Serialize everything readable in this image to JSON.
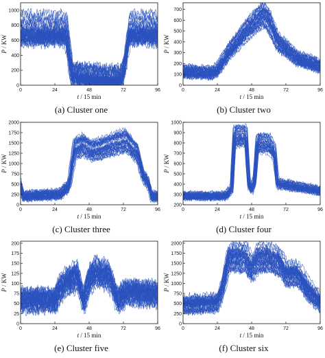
{
  "chart_data": [
    {
      "type": "line",
      "caption": "(a) Cluster one",
      "xlabel_var": "t",
      "xlabel_unit": " / 15 min",
      "ylabel_var": "P",
      "ylabel_unit": " / KW",
      "xlim": [
        0,
        96
      ],
      "ylim": [
        0,
        1100
      ],
      "xticks": [
        0,
        24,
        48,
        72,
        96
      ],
      "yticks": [
        0,
        200,
        400,
        600,
        800,
        1000
      ],
      "series_color": "#2a52be",
      "profile": {
        "x": [
          0,
          32,
          36,
          48,
          60,
          70,
          72,
          76,
          96
        ],
        "y": [
          720,
          720,
          150,
          110,
          90,
          100,
          200,
          720,
          720
        ]
      },
      "band": 330,
      "n_lines": 40
    },
    {
      "type": "line",
      "caption": "(b) Cluster two",
      "xlabel_var": "t",
      "xlabel_unit": " / 15 min",
      "ylabel_var": "P",
      "ylabel_unit": " / KW",
      "xlim": [
        0,
        96
      ],
      "ylim": [
        0,
        760
      ],
      "xticks": [
        0,
        24,
        48,
        72,
        96
      ],
      "yticks": [
        0,
        100,
        200,
        300,
        400,
        500,
        600,
        700
      ],
      "series_color": "#2a52be",
      "profile": {
        "x": [
          0,
          20,
          24,
          32,
          44,
          56,
          60,
          66,
          80,
          96
        ],
        "y": [
          120,
          110,
          140,
          300,
          500,
          650,
          590,
          400,
          240,
          170
        ]
      },
      "band": 120,
      "n_lines": 40
    },
    {
      "type": "line",
      "caption": "(c) Cluster three",
      "xlabel_var": "t",
      "xlabel_unit": " / 15 min",
      "ylabel_var": "P",
      "ylabel_unit": " / KW",
      "xlim": [
        0,
        96
      ],
      "ylim": [
        0,
        2000
      ],
      "xticks": [
        0,
        24,
        48,
        72,
        96
      ],
      "yticks": [
        0,
        250,
        500,
        750,
        1000,
        1250,
        1500,
        1750,
        2000
      ],
      "series_color": "#2a52be",
      "profile": {
        "x": [
          0,
          2,
          28,
          34,
          38,
          44,
          50,
          56,
          64,
          74,
          82,
          86,
          90,
          92
        ],
        "y": [
          500,
          200,
          250,
          450,
          1350,
          1450,
          1300,
          1350,
          1450,
          1550,
          1250,
          700,
          500,
          200
        ]
      },
      "band": 260,
      "n_lines": 40
    },
    {
      "type": "line",
      "caption": "(d) Cluster four",
      "xlabel_var": "t",
      "xlabel_unit": " / 15 min",
      "ylabel_var": "P",
      "ylabel_unit": " / KW",
      "xlim": [
        0,
        96
      ],
      "ylim": [
        200,
        1000
      ],
      "xticks": [
        0,
        24,
        48,
        72,
        96
      ],
      "yticks": [
        200,
        300,
        400,
        500,
        600,
        700,
        800,
        900,
        1000
      ],
      "series_color": "#2a52be",
      "profile": {
        "x": [
          0,
          30,
          34,
          36,
          44,
          46,
          48,
          50,
          52,
          60,
          64,
          66,
          96
        ],
        "y": [
          280,
          280,
          350,
          860,
          860,
          400,
          340,
          420,
          790,
          790,
          700,
          400,
          330
        ]
      },
      "band": 90,
      "n_lines": 40
    },
    {
      "type": "line",
      "caption": "(e) Cluster five",
      "xlabel_var": "t",
      "xlabel_unit": " / 15 min",
      "ylabel_var": "P",
      "ylabel_unit": " / KW",
      "xlim": [
        0,
        96
      ],
      "ylim": [
        0,
        205
      ],
      "xticks": [
        0,
        24,
        48,
        72,
        96
      ],
      "yticks": [
        0,
        25,
        50,
        75,
        100,
        125,
        150,
        175,
        200
      ],
      "series_color": "#2a52be",
      "profile": {
        "x": [
          0,
          24,
          28,
          34,
          40,
          44,
          48,
          52,
          62,
          68,
          74,
          96
        ],
        "y": [
          60,
          60,
          90,
          110,
          120,
          55,
          110,
          130,
          120,
          60,
          80,
          75
        ]
      },
      "band": 60,
      "n_lines": 40
    },
    {
      "type": "line",
      "caption": "(f) Cluster six",
      "xlabel_var": "t",
      "xlabel_unit": " / 15 min",
      "ylabel_var": "P",
      "ylabel_unit": " / KW",
      "xlim": [
        0,
        96
      ],
      "ylim": [
        0,
        2050
      ],
      "xticks": [
        0,
        24,
        48,
        72,
        96
      ],
      "yticks": [
        0,
        250,
        500,
        750,
        1000,
        1250,
        1500,
        1750,
        2000
      ],
      "series_color": "#2a52be",
      "profile": {
        "x": [
          0,
          24,
          28,
          32,
          44,
          48,
          52,
          60,
          68,
          72,
          80,
          88,
          96
        ],
        "y": [
          450,
          500,
          900,
          1600,
          1600,
          1300,
          1600,
          1600,
          1500,
          1200,
          1200,
          800,
          500
        ]
      },
      "band": 420,
      "n_lines": 40
    }
  ]
}
